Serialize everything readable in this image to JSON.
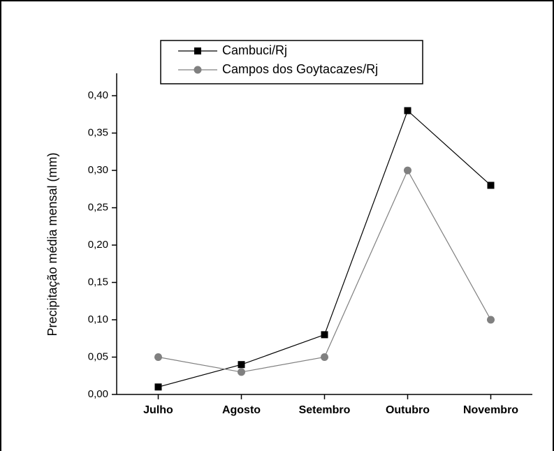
{
  "chart_data": {
    "type": "line",
    "y_label": "Precipitação média mensal (mm)",
    "categories": [
      "Julho",
      "Agosto",
      "Setembro",
      "Outubro",
      "Novembro"
    ],
    "series": [
      {
        "name": "Cambuci/Rj",
        "color": "#000000",
        "marker": "square",
        "values": [
          0.01,
          0.04,
          0.08,
          0.38,
          0.28
        ]
      },
      {
        "name": "Campos dos Goytacazes/Rj",
        "color": "#808080",
        "marker": "circle",
        "values": [
          0.05,
          0.03,
          0.05,
          0.3,
          0.1
        ]
      }
    ],
    "ylim": [
      0,
      0.43
    ],
    "yticks": [
      {
        "value": 0,
        "label": "0,00"
      },
      {
        "value": 0.05,
        "label": "0,05"
      },
      {
        "value": 0.1,
        "label": "0,10"
      },
      {
        "value": 0.15,
        "label": "0,15"
      },
      {
        "value": 0.2,
        "label": "0,20"
      },
      {
        "value": 0.25,
        "label": "0,25"
      },
      {
        "value": 0.3,
        "label": "0,30"
      },
      {
        "value": 0.35,
        "label": "0,35"
      },
      {
        "value": 0.4,
        "label": "0,40"
      }
    ]
  }
}
